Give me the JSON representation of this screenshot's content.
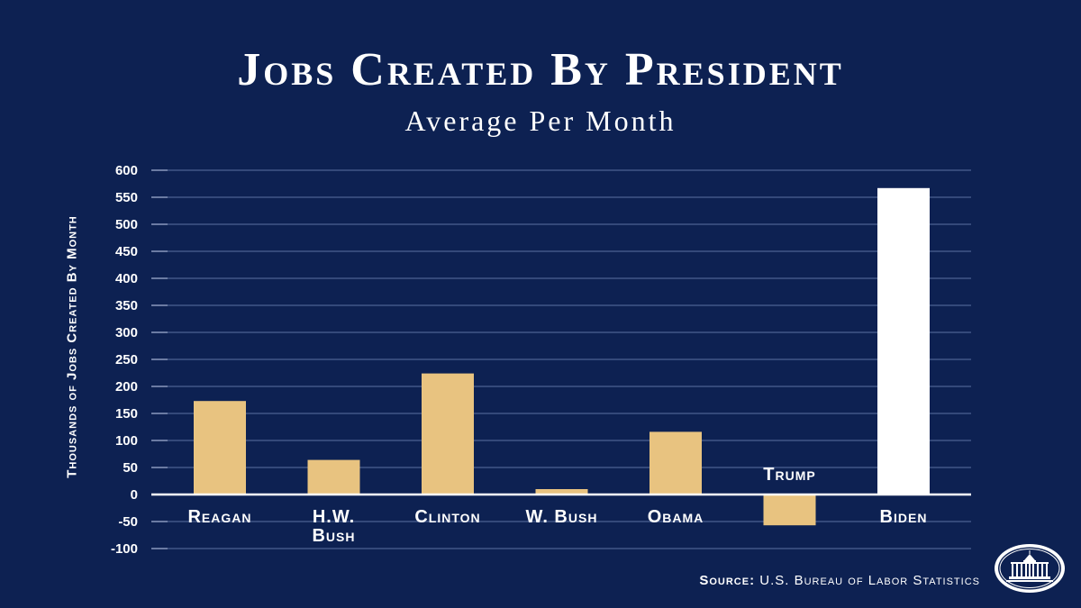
{
  "chart_data": {
    "type": "bar",
    "title": "Jobs Created By President",
    "subtitle": "Average Per Month",
    "ylabel": "Thousands of Jobs Created By Month",
    "ylim": [
      -100,
      600
    ],
    "yticks": [
      600,
      550,
      500,
      450,
      400,
      350,
      300,
      250,
      200,
      150,
      100,
      50,
      0,
      -50,
      -100
    ],
    "grid": true,
    "categories": [
      "Reagan",
      "H.W. Bush",
      "Clinton",
      "W. Bush",
      "Obama",
      "Trump",
      "Biden"
    ],
    "category_labels": [
      [
        "Reagan"
      ],
      [
        "H.W.",
        "Bush"
      ],
      [
        "Clinton"
      ],
      [
        "W. Bush"
      ],
      [
        "Obama"
      ],
      [
        "Trump"
      ],
      [
        "Biden"
      ]
    ],
    "values": [
      173,
      64,
      224,
      10,
      116,
      -57,
      567
    ],
    "colors": [
      "#e8c380",
      "#e8c380",
      "#e8c380",
      "#e8c380",
      "#e8c380",
      "#e8c380",
      "#ffffff"
    ]
  },
  "source": {
    "label": "Source:",
    "text": "U.S. Bureau of Labor Statistics"
  },
  "logo": {
    "icon": "white-house-icon"
  },
  "colors": {
    "background": "#0d2152",
    "bar": "#e8c380",
    "highlight": "#ffffff",
    "grid": "#34497a"
  }
}
